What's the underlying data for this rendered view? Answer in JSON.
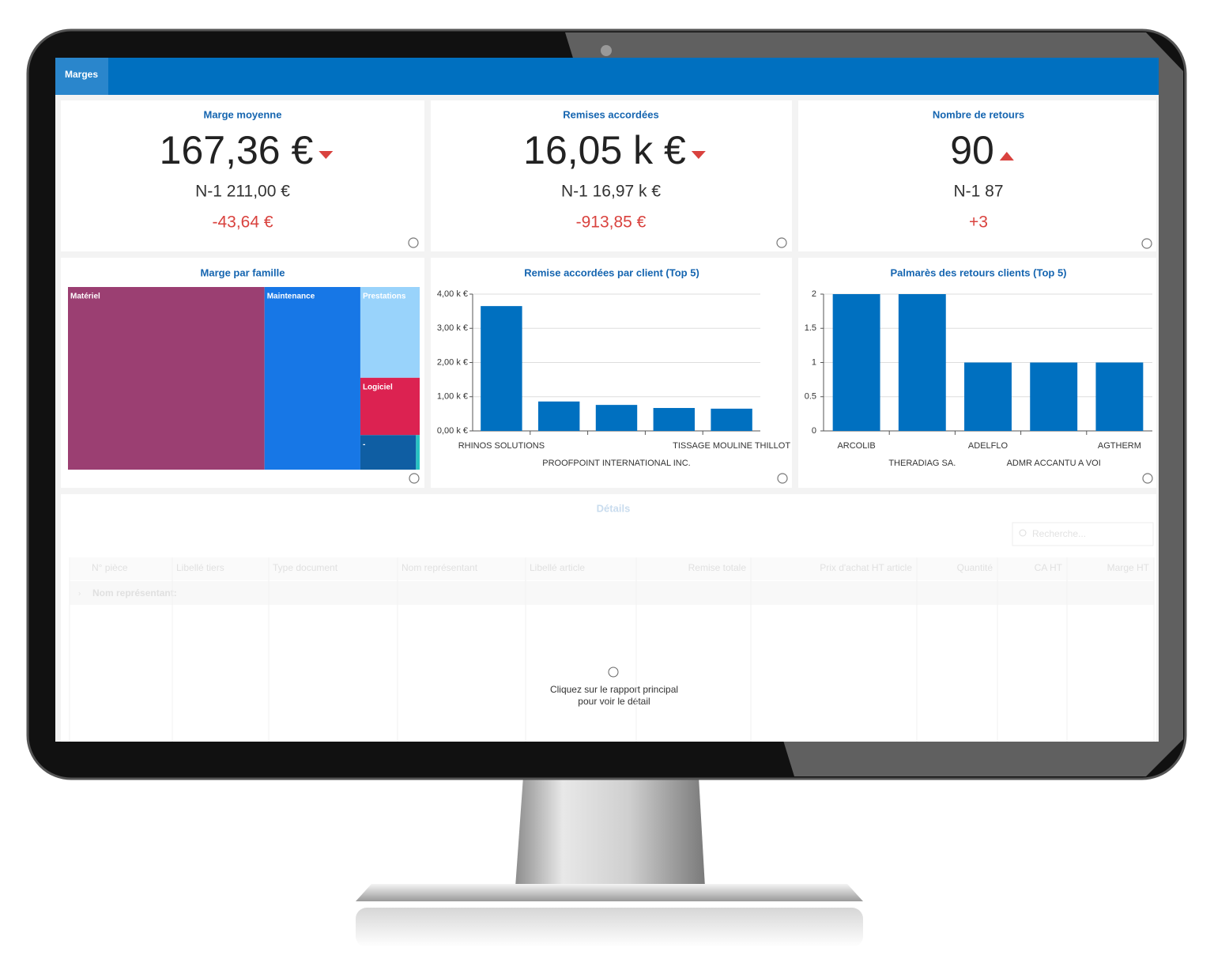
{
  "header": {
    "tab": "Marges"
  },
  "kpis": [
    {
      "title": "Marge moyenne",
      "value": "167,36 €",
      "previous": "N-1 211,00 €",
      "delta": "-43,64 €",
      "trend": "down"
    },
    {
      "title": "Remises accordées",
      "value": "16,05 k €",
      "previous": "N-1 16,97 k €",
      "delta": "-913,85 €",
      "trend": "down"
    },
    {
      "title": "Nombre de retours",
      "value": "90",
      "previous": "N-1 87",
      "delta": "+3",
      "trend": "up"
    }
  ],
  "charts": [
    {
      "type": "treemap",
      "title": "Marge par famille",
      "items": [
        {
          "name": "Matériel",
          "value": 56,
          "color": "#9b3f72"
        },
        {
          "name": "Maintenance",
          "value": 27.3,
          "color": "#1777e6"
        },
        {
          "name": "Prestations",
          "value": 8.4,
          "color": "#99d3fb"
        },
        {
          "name": "Logiciel",
          "value": 5.3,
          "color": "#dc2251"
        },
        {
          "name": "-",
          "value": 3.0,
          "color": "#0f5ea3"
        },
        {
          "name": null,
          "value": 0.2,
          "color": "#27c2c2"
        }
      ]
    },
    {
      "type": "bar",
      "title": "Remise accordées par client (Top 5)",
      "categories": [
        "RHINOS SOLUTIONS",
        null,
        "PROOFPOINT INTERNATIONAL INC.",
        null,
        "TISSAGE MOULINE THILLOT"
      ],
      "values": [
        3.65,
        0.86,
        0.76,
        0.67,
        0.65
      ],
      "color": "#0070c0",
      "ylim": [
        0,
        4
      ],
      "yticks": [
        {
          "value": 0,
          "label": "0,00 k €"
        },
        {
          "value": 1,
          "label": "1,00 k €"
        },
        {
          "value": 2,
          "label": "2,00 k €"
        },
        {
          "value": 3,
          "label": "3,00 k €"
        },
        {
          "value": 4,
          "label": "4,00 k €"
        }
      ],
      "grid": true
    },
    {
      "type": "bar",
      "title": "Palmarès des retours clients (Top 5)",
      "categories": [
        "ARCOLIB",
        "THERADIAG SA.",
        "ADELFLO",
        "ADMR ACCANTU A VOI",
        "AGTHERM"
      ],
      "values": [
        2,
        2,
        1,
        1,
        1
      ],
      "color": "#0070c0",
      "ylim": [
        0,
        2
      ],
      "yticks": [
        0,
        0.5,
        1,
        1.5,
        2
      ],
      "grid": true
    }
  ],
  "details": {
    "title": "Détails",
    "search": "Recherche...",
    "columns": [
      "N° pièce",
      "Libellé tiers",
      "Type document",
      "Nom représentant",
      "Libellé article",
      "Remise totale",
      "Prix d'achat HT article",
      "Quantité",
      "CA HT",
      "Marge HT"
    ],
    "group": "Nom représentant:",
    "empty": [
      "Cliquez sur le rapport principal",
      "pour voir le détail"
    ]
  }
}
